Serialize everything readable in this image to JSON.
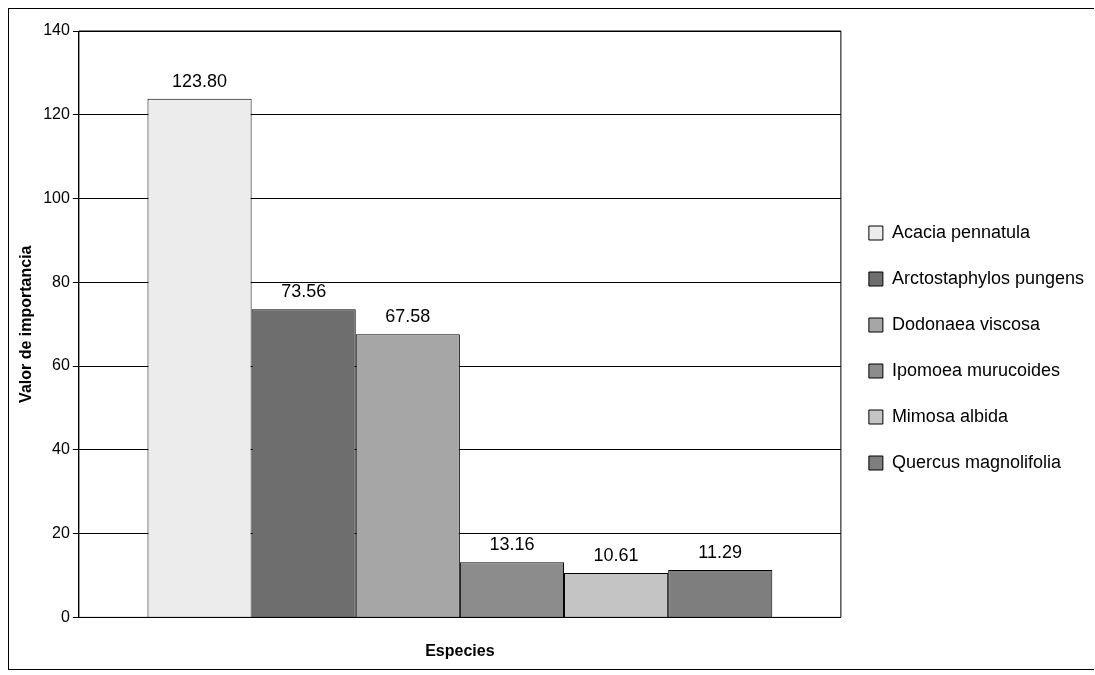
{
  "chart_data": {
    "type": "bar",
    "xlabel": "Especies",
    "ylabel": "Valor de importancia",
    "categories": [
      null
    ],
    "series": [
      {
        "name": "Acacia pennatula",
        "color": "#ececec",
        "values": [
          123.8
        ],
        "value_labels": [
          "123.80"
        ]
      },
      {
        "name": "Arctostaphylos pungens",
        "color": "#6e6e6e",
        "values": [
          73.56
        ],
        "value_labels": [
          "73.56"
        ]
      },
      {
        "name": "Dodonaea viscosa",
        "color": "#a6a6a6",
        "values": [
          67.58
        ],
        "value_labels": [
          "67.58"
        ]
      },
      {
        "name": "Ipomoea murucoides",
        "color": "#8c8c8c",
        "values": [
          13.16
        ],
        "value_labels": [
          "13.16"
        ]
      },
      {
        "name": "Mimosa albida",
        "color": "#c4c4c4",
        "values": [
          10.61
        ],
        "value_labels": [
          "10.61"
        ]
      },
      {
        "name": "Quercus magnolifolia",
        "color": "#7e7e7e",
        "values": [
          11.29
        ],
        "value_labels": [
          "11.29"
        ]
      }
    ],
    "ylim": [
      0,
      140
    ],
    "yticks": [
      0,
      20,
      40,
      60,
      80,
      100,
      120,
      140
    ],
    "grid": "y",
    "legend": "right"
  }
}
